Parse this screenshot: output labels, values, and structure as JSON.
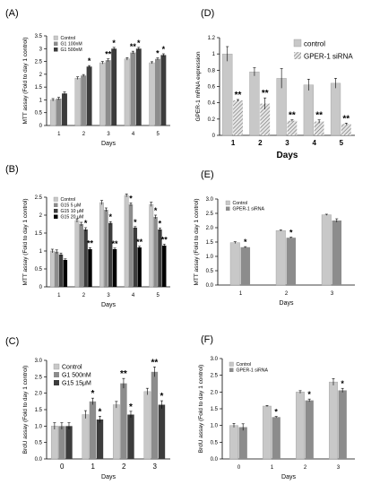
{
  "colors": {
    "gray_light": "#c8c8c8",
    "gray_mid": "#8c8c8c",
    "gray_dark": "#3c3c3c",
    "black": "#000000",
    "hatch": "#a0a0a0"
  },
  "chart_data": [
    {
      "panel": "(A)",
      "type": "bar",
      "xlabel": "Days",
      "ylabel": "MTT assay (Fold to day 1 control)",
      "ylim": [
        0,
        3.5
      ],
      "yticks": [
        "0",
        "0.5",
        "1",
        "1.5",
        "2",
        "2.5",
        "3",
        "3.5"
      ],
      "categories": [
        "1",
        "2",
        "3",
        "4",
        "5"
      ],
      "legend": {
        "placement": "top-left"
      },
      "series": [
        {
          "name": "Control",
          "values": [
            1.0,
            1.85,
            2.45,
            2.6,
            2.45
          ],
          "errors": [
            0.05,
            0.05,
            0.05,
            0.05,
            0.04
          ],
          "fill": "light"
        },
        {
          "name": "G1 100nM",
          "values": [
            1.05,
            1.95,
            2.55,
            2.85,
            2.6
          ],
          "errors": [
            0.05,
            0.04,
            0.05,
            0.05,
            0.04
          ],
          "fill": "mid"
        },
        {
          "name": "G1 500nM",
          "values": [
            1.25,
            2.3,
            3.0,
            3.0,
            2.75
          ],
          "errors": [
            0.06,
            0.04,
            0.05,
            0.05,
            0.05
          ],
          "fill": "dark"
        }
      ],
      "annotations": [
        {
          "category": "2",
          "series": 2,
          "text": "*"
        },
        {
          "category": "3",
          "series": 1,
          "text": "**"
        },
        {
          "category": "3",
          "series": 2,
          "text": "*"
        },
        {
          "category": "4",
          "series": 1,
          "text": "**"
        },
        {
          "category": "4",
          "series": 2,
          "text": "*"
        },
        {
          "category": "5",
          "series": 1,
          "text": "*"
        },
        {
          "category": "5",
          "series": 2,
          "text": "*"
        }
      ]
    },
    {
      "panel": "(B)",
      "type": "bar",
      "xlabel": "Days",
      "ylabel": "MTT assay (Fold to day 1 control)",
      "ylim": [
        0,
        2.5
      ],
      "yticks": [
        "0",
        "0.5",
        "1",
        "1.5",
        "2",
        "2.5"
      ],
      "categories": [
        "1",
        "2",
        "3",
        "4",
        "5"
      ],
      "legend": {
        "placement": "top-left"
      },
      "series": [
        {
          "name": "Control",
          "values": [
            1.0,
            1.85,
            2.35,
            2.55,
            2.3
          ],
          "errors": [
            0.05,
            0.05,
            0.06,
            0.04,
            0.06
          ],
          "fill": "light"
        },
        {
          "name": "G15 5 μM",
          "values": [
            0.98,
            1.75,
            2.15,
            2.3,
            1.95
          ],
          "errors": [
            0.05,
            0.05,
            0.05,
            0.04,
            0.05
          ],
          "fill": "mid"
        },
        {
          "name": "G15 10 μM",
          "values": [
            0.9,
            1.6,
            1.78,
            1.65,
            1.6
          ],
          "errors": [
            0.04,
            0.05,
            0.04,
            0.03,
            0.04
          ],
          "fill": "dark"
        },
        {
          "name": "G15 20 μM",
          "values": [
            0.75,
            1.05,
            1.05,
            1.1,
            1.15
          ],
          "errors": [
            0.03,
            0.04,
            0.03,
            0.03,
            0.04
          ],
          "fill": "black"
        }
      ],
      "annotations": [
        {
          "category": "2",
          "series": 2,
          "text": "*"
        },
        {
          "category": "2",
          "series": 3,
          "text": "**"
        },
        {
          "category": "3",
          "series": 2,
          "text": "*"
        },
        {
          "category": "3",
          "series": 3,
          "text": "**"
        },
        {
          "category": "4",
          "series": 1,
          "text": "*"
        },
        {
          "category": "4",
          "series": 2,
          "text": "*"
        },
        {
          "category": "4",
          "series": 3,
          "text": "**"
        },
        {
          "category": "5",
          "series": 1,
          "text": "*"
        },
        {
          "category": "5",
          "series": 2,
          "text": "*"
        },
        {
          "category": "5",
          "series": 3,
          "text": "**"
        }
      ]
    },
    {
      "panel": "(C)",
      "type": "bar",
      "xlabel": "Days",
      "ylabel": "BrdU assay (Fold to day 1 control)",
      "ylim": [
        0,
        3.0
      ],
      "yticks": [
        "0.0",
        "0.5",
        "1.0",
        "1.5",
        "2.0",
        "2.5",
        "3.0"
      ],
      "categories": [
        "0",
        "1",
        "2",
        "3"
      ],
      "legend": {
        "placement": "top-left"
      },
      "series": [
        {
          "name": "Control",
          "values": [
            1.0,
            1.35,
            1.65,
            2.05
          ],
          "errors": [
            0.1,
            0.12,
            0.1,
            0.1
          ],
          "fill": "light"
        },
        {
          "name": "G1 500nM",
          "values": [
            1.0,
            1.75,
            2.3,
            2.65
          ],
          "errors": [
            0.1,
            0.1,
            0.15,
            0.15
          ],
          "fill": "mid"
        },
        {
          "name": "G15 15μM",
          "values": [
            1.0,
            1.2,
            1.35,
            1.65
          ],
          "errors": [
            0.1,
            0.1,
            0.1,
            0.12
          ],
          "fill": "dark"
        }
      ],
      "annotations": [
        {
          "category": "1",
          "series": 1,
          "text": "*"
        },
        {
          "category": "1",
          "series": 2,
          "text": "*"
        },
        {
          "category": "2",
          "series": 1,
          "text": "**"
        },
        {
          "category": "2",
          "series": 2,
          "text": "*"
        },
        {
          "category": "3",
          "series": 1,
          "text": "**"
        },
        {
          "category": "3",
          "series": 2,
          "text": "*"
        }
      ]
    },
    {
      "panel": "(D)",
      "type": "bar",
      "xlabel": "Days",
      "ylabel": "GPER-1 mRNA expression",
      "ylim": [
        0,
        1.2
      ],
      "yticks": [
        "0",
        "0.2",
        "0.4",
        "0.6",
        "0.8",
        "1",
        "1.2"
      ],
      "categories": [
        "1",
        "2",
        "3",
        "4",
        "5"
      ],
      "legend": {
        "placement": "top-right"
      },
      "series": [
        {
          "name": "control",
          "values": [
            1.0,
            0.78,
            0.7,
            0.62,
            0.64
          ],
          "errors": [
            0.09,
            0.05,
            0.12,
            0.07,
            0.06
          ],
          "fill": "light"
        },
        {
          "name": "GPER-1 siRNA",
          "values": [
            0.43,
            0.39,
            0.18,
            0.17,
            0.14
          ],
          "errors": [
            0.01,
            0.07,
            0.01,
            0.02,
            0.01
          ],
          "fill": "hatch"
        }
      ],
      "annotations": [
        {
          "category": "1",
          "series": 1,
          "text": "**"
        },
        {
          "category": "2",
          "series": 1,
          "text": "**"
        },
        {
          "category": "3",
          "series": 1,
          "text": "**"
        },
        {
          "category": "4",
          "series": 1,
          "text": "**"
        },
        {
          "category": "5",
          "series": 1,
          "text": "**"
        }
      ]
    },
    {
      "panel": "(E)",
      "type": "bar",
      "xlabel": "Days",
      "ylabel": "MTT assay (Fold to day 1 control)",
      "ylim": [
        0,
        3.0
      ],
      "yticks": [
        "0.0",
        "0.5",
        "1.0",
        "1.5",
        "2.0",
        "2.5",
        "3.0"
      ],
      "categories": [
        "1",
        "2",
        "3"
      ],
      "legend": {
        "placement": "top-left"
      },
      "series": [
        {
          "name": "Control",
          "values": [
            1.48,
            1.9,
            2.45
          ],
          "errors": [
            0.03,
            0.02,
            0.02
          ],
          "fill": "light"
        },
        {
          "name": "GPER-1 siRNA",
          "values": [
            1.32,
            1.65,
            2.25
          ],
          "errors": [
            0.02,
            0.02,
            0.06
          ],
          "fill": "mid"
        }
      ],
      "annotations": [
        {
          "category": "1",
          "series": 1,
          "text": "*"
        },
        {
          "category": "2",
          "series": 1,
          "text": "*"
        }
      ]
    },
    {
      "panel": "(F)",
      "type": "bar",
      "xlabel": "Days",
      "ylabel": "BrdU assay (Fold to day 1 control)",
      "ylim": [
        0,
        3.0
      ],
      "yticks": [
        "0.0",
        "0.5",
        "1.0",
        "1.5",
        "2.0",
        "2.5",
        "3.0"
      ],
      "categories": [
        "0",
        "1",
        "2",
        "3"
      ],
      "legend": {
        "placement": "top-left"
      },
      "series": [
        {
          "name": "Control",
          "values": [
            1.0,
            1.58,
            2.0,
            2.3
          ],
          "errors": [
            0.06,
            0.02,
            0.04,
            0.1
          ],
          "fill": "light"
        },
        {
          "name": "GPER-1 siRNA",
          "values": [
            0.95,
            1.25,
            1.75,
            2.05
          ],
          "errors": [
            0.1,
            0.02,
            0.04,
            0.06
          ],
          "fill": "mid"
        }
      ],
      "annotations": [
        {
          "category": "1",
          "series": 1,
          "text": "*"
        },
        {
          "category": "2",
          "series": 1,
          "text": "*"
        },
        {
          "category": "3",
          "series": 1,
          "text": "*"
        }
      ]
    }
  ]
}
